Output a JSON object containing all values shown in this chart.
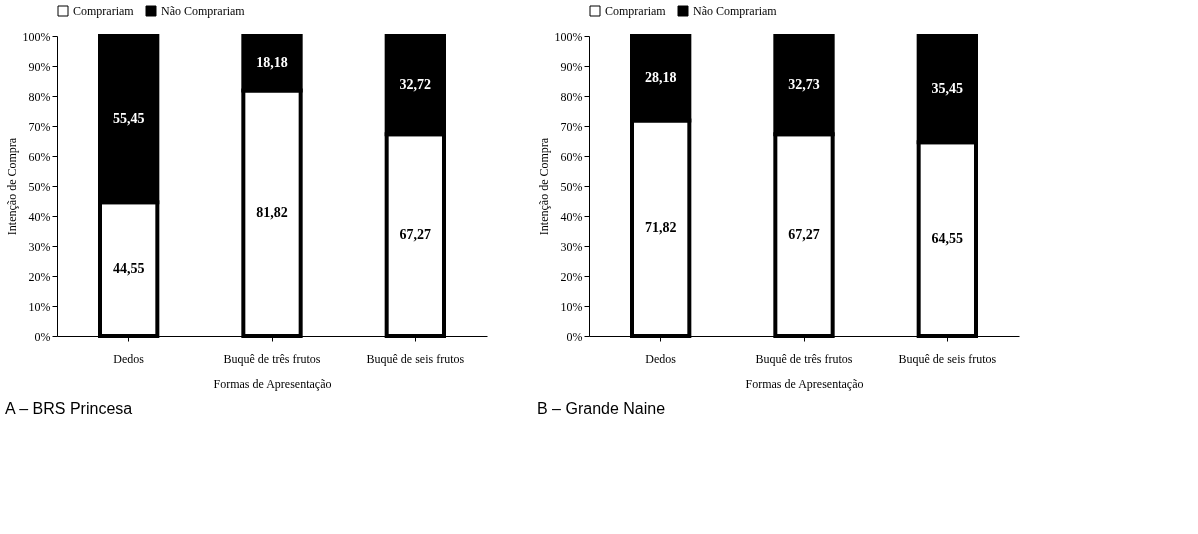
{
  "chart_data": [
    {
      "type": "bar",
      "stacked": true,
      "categories": [
        "Dedos",
        "Buquê de três frutos",
        "Buquê de seis frutos"
      ],
      "series": [
        {
          "name": "Comprariam",
          "color": "#ffffff",
          "values": [
            44.55,
            81.82,
            67.27
          ],
          "value_labels": [
            "44,55",
            "81,82",
            "67,27"
          ]
        },
        {
          "name": "Não Comprariam",
          "color": "#000000",
          "values": [
            55.45,
            18.18,
            32.72
          ],
          "value_labels": [
            "55,45",
            "18,18",
            "32,72"
          ]
        }
      ],
      "ylim": [
        0,
        100
      ],
      "yticks": [
        {
          "value": 0,
          "label": "0%"
        },
        {
          "value": 10,
          "label": "10%"
        },
        {
          "value": 20,
          "label": "20%"
        },
        {
          "value": 30,
          "label": "30%"
        },
        {
          "value": 40,
          "label": "40%"
        },
        {
          "value": 50,
          "label": "50%"
        },
        {
          "value": 60,
          "label": "60%"
        },
        {
          "value": 70,
          "label": "70%"
        },
        {
          "value": 80,
          "label": "80%"
        },
        {
          "value": 90,
          "label": "90%"
        },
        {
          "value": 100,
          "label": "100%"
        }
      ],
      "xlabel": "Formas de Apresentação",
      "ylabel": "Intenção de Compra",
      "legend": "top",
      "grid": false,
      "annotations": [
        "A – BRS Princesa"
      ]
    },
    {
      "type": "bar",
      "stacked": true,
      "categories": [
        "Dedos",
        "Buquê de três frutos",
        "Buquê de seis frutos"
      ],
      "series": [
        {
          "name": "Comprariam",
          "color": "#ffffff",
          "values": [
            71.82,
            67.27,
            64.55
          ],
          "value_labels": [
            "71,82",
            "67,27",
            "64,55"
          ]
        },
        {
          "name": "Não Comprariam",
          "color": "#000000",
          "values": [
            28.18,
            32.73,
            35.45
          ],
          "value_labels": [
            "28,18",
            "32,73",
            "35,45"
          ]
        }
      ],
      "ylim": [
        0,
        100
      ],
      "yticks": [
        {
          "value": 0,
          "label": "0%"
        },
        {
          "value": 10,
          "label": "10%"
        },
        {
          "value": 20,
          "label": "20%"
        },
        {
          "value": 30,
          "label": "30%"
        },
        {
          "value": 40,
          "label": "40%"
        },
        {
          "value": 50,
          "label": "50%"
        },
        {
          "value": 60,
          "label": "60%"
        },
        {
          "value": 70,
          "label": "70%"
        },
        {
          "value": 80,
          "label": "80%"
        },
        {
          "value": 90,
          "label": "90%"
        },
        {
          "value": 100,
          "label": "100%"
        }
      ],
      "xlabel": "Formas de Apresentação",
      "ylabel": "Intenção de Compra",
      "legend": "top",
      "grid": false,
      "annotations": [
        "B – Grande Naine"
      ]
    }
  ]
}
